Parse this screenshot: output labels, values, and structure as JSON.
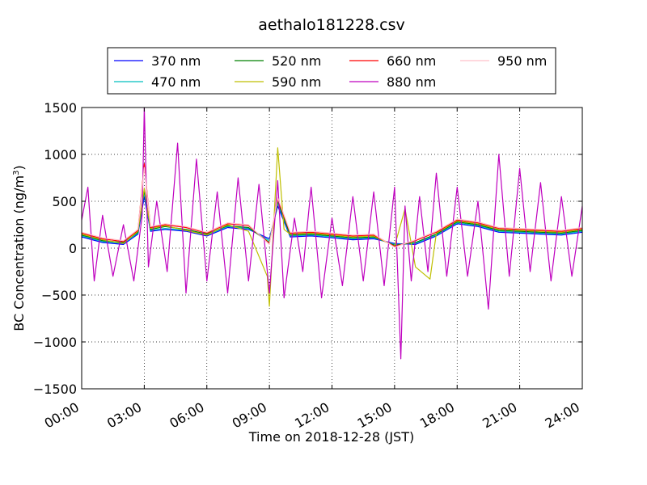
{
  "chart_data": {
    "type": "line",
    "title": "aethalo181228.csv",
    "xlabel": "Time on 2018-12-28 (JST)",
    "ylabel": "BC Concentration (ng/m³)",
    "ylabel_parts": {
      "main": "BC Concentration (ng/m",
      "sup": "3",
      "tail": ")"
    },
    "xlim": [
      "00:00",
      "24:00"
    ],
    "ylim": [
      -1500,
      1500
    ],
    "x_ticks": [
      "00:00",
      "03:00",
      "06:00",
      "09:00",
      "12:00",
      "15:00",
      "18:00",
      "21:00",
      "24:00"
    ],
    "y_ticks": [
      1500,
      1000,
      500,
      0,
      -500,
      -1000,
      -1500
    ],
    "y_tick_labels": [
      "1500",
      "1000",
      "500",
      "0",
      "−500",
      "−1000",
      "−1500"
    ],
    "grid": true,
    "legend_position": "top",
    "series": [
      {
        "name": "370 nm",
        "color": "#0000ff",
        "x": [
          0,
          1,
          2,
          2.7,
          3,
          3.3,
          4,
          5,
          6,
          7,
          8,
          9,
          9.4,
          10,
          11,
          12,
          13,
          14,
          15,
          16,
          17,
          18,
          19,
          20,
          21,
          22,
          23,
          24
        ],
        "y": [
          120,
          60,
          40,
          150,
          550,
          180,
          200,
          180,
          130,
          220,
          200,
          100,
          450,
          120,
          130,
          110,
          90,
          100,
          50,
          40,
          130,
          260,
          230,
          170,
          160,
          150,
          140,
          170
        ]
      },
      {
        "name": "470 nm",
        "color": "#00bfbf",
        "x": [
          0,
          1,
          2,
          2.7,
          3,
          3.3,
          4,
          5,
          6,
          7,
          8,
          9,
          9.4,
          10,
          11,
          12,
          13,
          14,
          15,
          16,
          17,
          18,
          19,
          20,
          21,
          22,
          23,
          24
        ],
        "y": [
          130,
          70,
          50,
          160,
          600,
          190,
          210,
          190,
          140,
          230,
          210,
          80,
          480,
          130,
          140,
          120,
          100,
          110,
          40,
          50,
          140,
          270,
          240,
          180,
          170,
          160,
          150,
          180
        ]
      },
      {
        "name": "520 nm",
        "color": "#008000",
        "x": [
          0,
          1,
          2,
          2.7,
          3,
          3.3,
          4,
          5,
          6,
          7,
          8,
          9,
          9.4,
          10,
          11,
          12,
          13,
          14,
          15,
          16,
          17,
          18,
          19,
          20,
          21,
          22,
          23,
          24
        ],
        "y": [
          140,
          80,
          60,
          170,
          620,
          200,
          230,
          200,
          150,
          240,
          220,
          60,
          500,
          140,
          150,
          130,
          110,
          120,
          30,
          60,
          150,
          280,
          250,
          190,
          180,
          170,
          160,
          190
        ]
      },
      {
        "name": "590 nm",
        "color": "#bfbf00",
        "x": [
          0,
          1,
          2,
          2.7,
          3,
          3.3,
          4,
          5,
          6,
          7,
          8,
          8.9,
          9.0,
          9.4,
          9.7,
          10,
          11,
          12,
          13,
          14,
          15,
          15.5,
          16,
          16.7,
          17,
          18,
          19,
          20,
          21,
          22,
          23,
          24
        ],
        "y": [
          150,
          90,
          50,
          180,
          640,
          210,
          240,
          190,
          140,
          250,
          180,
          -300,
          -620,
          1070,
          200,
          150,
          160,
          140,
          120,
          130,
          20,
          420,
          -200,
          -330,
          160,
          290,
          260,
          200,
          190,
          180,
          170,
          200
        ]
      },
      {
        "name": "660 nm",
        "color": "#ff0000",
        "x": [
          0,
          1,
          2,
          2.7,
          3,
          3.3,
          4,
          5,
          6,
          7,
          8,
          9,
          9.4,
          10,
          11,
          12,
          13,
          14,
          15,
          16,
          17,
          18,
          19,
          20,
          21,
          22,
          23,
          24
        ],
        "y": [
          160,
          100,
          70,
          190,
          900,
          220,
          250,
          220,
          160,
          260,
          240,
          50,
          520,
          160,
          170,
          150,
          130,
          140,
          20,
          80,
          170,
          300,
          270,
          210,
          200,
          190,
          180,
          210
        ]
      },
      {
        "name": "880 nm",
        "color": "#bf00bf",
        "x": [
          0,
          0.3,
          0.6,
          1,
          1.5,
          2,
          2.5,
          2.9,
          3.0,
          3.2,
          3.6,
          4.1,
          4.6,
          5.0,
          5.5,
          6.0,
          6.5,
          7.0,
          7.5,
          8.0,
          8.5,
          9.0,
          9.4,
          9.7,
          10.2,
          10.6,
          11.0,
          11.5,
          12.0,
          12.5,
          13.0,
          13.5,
          14.0,
          14.5,
          15.0,
          15.3,
          15.5,
          15.8,
          16.2,
          16.6,
          17.0,
          17.5,
          18.0,
          18.5,
          19.0,
          19.5,
          20.0,
          20.5,
          21.0,
          21.5,
          22.0,
          22.5,
          23.0,
          23.5,
          24.0
        ],
        "y": [
          300,
          650,
          -350,
          350,
          -300,
          250,
          -350,
          350,
          1500,
          -200,
          500,
          -250,
          1120,
          -480,
          950,
          -350,
          600,
          -480,
          750,
          -350,
          680,
          -480,
          720,
          -530,
          320,
          -250,
          650,
          -530,
          320,
          -400,
          550,
          -350,
          600,
          -400,
          650,
          -1180,
          450,
          -350,
          550,
          -250,
          800,
          -300,
          650,
          -300,
          500,
          -650,
          1000,
          -300,
          850,
          -250,
          700,
          -350,
          550,
          -300,
          450
        ]
      },
      {
        "name": "950 nm",
        "color": "#ffc0cb",
        "x": [
          0,
          1,
          2,
          2.7,
          3,
          3.3,
          4,
          5,
          6,
          7,
          8,
          9,
          9.4,
          10,
          11,
          12,
          13,
          14,
          15,
          16,
          17,
          18,
          19,
          20,
          21,
          22,
          23,
          24
        ],
        "y": [
          170,
          110,
          80,
          200,
          860,
          230,
          260,
          230,
          170,
          270,
          250,
          40,
          540,
          170,
          180,
          160,
          140,
          150,
          10,
          90,
          180,
          310,
          280,
          220,
          210,
          200,
          190,
          220
        ]
      }
    ]
  }
}
